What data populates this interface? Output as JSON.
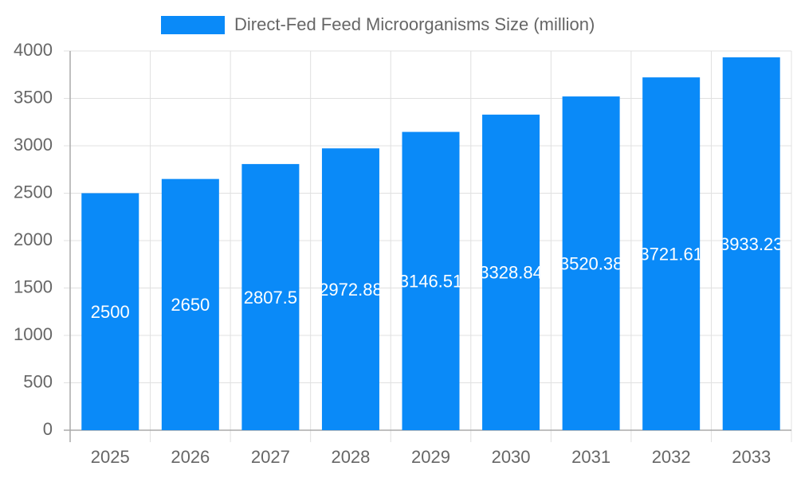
{
  "chart_data": {
    "type": "bar",
    "legend": "Direct-Fed Feed Microorganisms Size (million)",
    "categories": [
      "2025",
      "2026",
      "2027",
      "2028",
      "2029",
      "2030",
      "2031",
      "2032",
      "2033"
    ],
    "values": [
      2500,
      2650,
      2807.5,
      2972.88,
      3146.51,
      3328.84,
      3520.38,
      3721.61,
      3933.23
    ],
    "color": "#0a8af8",
    "ylim": [
      0,
      4000
    ],
    "yticks": [
      0,
      500,
      1000,
      1500,
      2000,
      2500,
      3000,
      3500,
      4000
    ],
    "grid": true,
    "legend_position": "top"
  }
}
